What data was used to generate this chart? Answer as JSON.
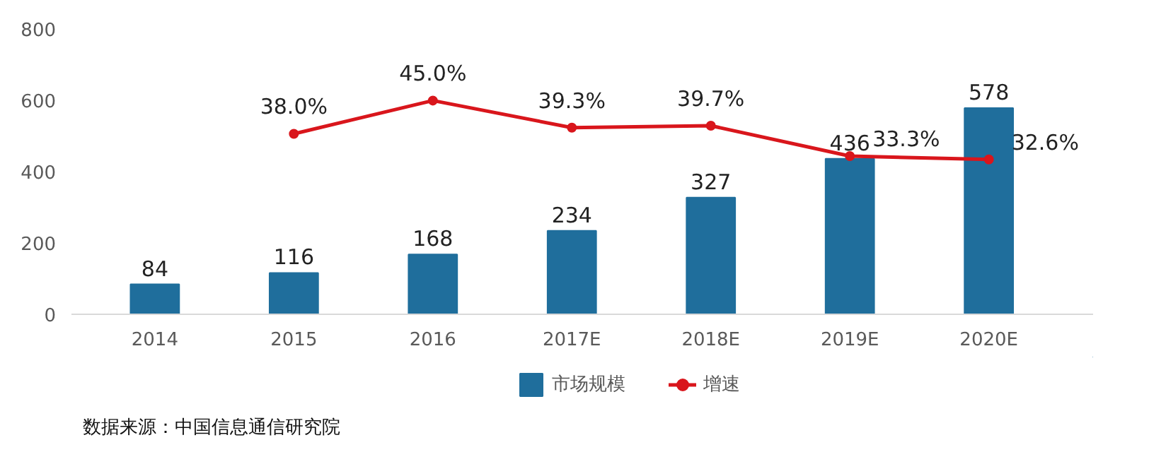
{
  "chart_data": {
    "type": "bar",
    "categories": [
      "2014",
      "2015",
      "2016",
      "2017E",
      "2018E",
      "2019E",
      "2020E"
    ],
    "series": [
      {
        "name": "市场规模",
        "color": "#1f6e9c",
        "values": [
          84,
          116,
          168,
          234,
          327,
          436,
          578
        ],
        "value_labels": [
          "84",
          "116",
          "168",
          "234",
          "327",
          "436",
          "578"
        ]
      },
      {
        "name": "增速",
        "type": "line",
        "axis": "y2",
        "color": "#d9161c",
        "marker": "circle",
        "values": [
          null,
          38.0,
          45.0,
          39.3,
          39.7,
          33.3,
          32.6
        ],
        "value_labels": [
          null,
          "38.0%",
          "45.0%",
          "39.3%",
          "39.7%",
          "33.3%",
          "32.6%"
        ]
      }
    ],
    "ylim": [
      0,
      800
    ],
    "yticks": [
      0,
      200,
      400,
      600,
      800
    ],
    "tick_labels": "xy",
    "grid": false,
    "legend": "bottom",
    "annotations": [
      "数据来源：中国信息通信研究院"
    ]
  }
}
